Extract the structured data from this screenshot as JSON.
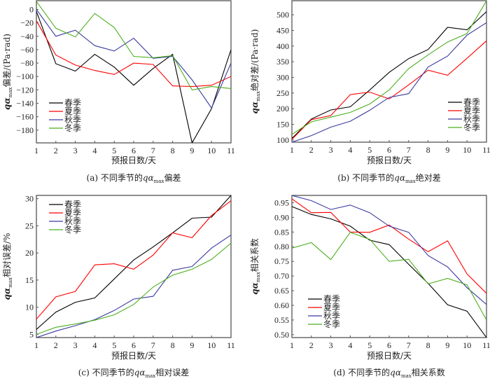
{
  "chart_data": [
    {
      "id": "a",
      "type": "line",
      "caption_prefix": "(a) 不同季节的",
      "caption_var": "qα",
      "caption_sub": "max",
      "caption_suffix": "偏差",
      "xlabel": "预报日数/天",
      "ylabel_var": "qα",
      "ylabel_sub": "max",
      "ylabel_suffix": "偏差/(Pa·rad)",
      "x": [
        1,
        2,
        3,
        4,
        5,
        6,
        7,
        8,
        9,
        10,
        11
      ],
      "xticks": [
        "1",
        "2",
        "3",
        "4",
        "5",
        "6",
        "7",
        "8",
        "9",
        "10",
        "11"
      ],
      "yticks": [
        0,
        -20,
        -40,
        -60,
        -80,
        -100,
        -120,
        -140,
        -160,
        -180
      ],
      "ytick_labels": [
        "0",
        "−20",
        "−40",
        "−60",
        "−80",
        "−100",
        "−120",
        "−140",
        "−160",
        "−180"
      ],
      "ylim": [
        -199,
        13
      ],
      "legend": "bottom-left",
      "series": [
        {
          "name": "春季",
          "color": "#000000",
          "values": [
            -3,
            -81,
            -92,
            -67,
            -86,
            -113,
            -88,
            -67,
            -199,
            -148,
            -60
          ]
        },
        {
          "name": "夏季",
          "color": "#ff0000",
          "values": [
            -17,
            -68,
            -83,
            -91,
            -97,
            -80,
            -82,
            -114,
            -115,
            -113,
            -100
          ]
        },
        {
          "name": "秋季",
          "color": "#3a3aa0",
          "values": [
            0,
            -40,
            -31,
            -54,
            -62,
            -43,
            -73,
            -70,
            -105,
            -147,
            -80
          ]
        },
        {
          "name": "冬季",
          "color": "#4caf1e",
          "values": [
            12,
            -28,
            -41,
            -6,
            -27,
            -70,
            -72,
            -69,
            -120,
            -115,
            -118
          ]
        }
      ]
    },
    {
      "id": "b",
      "type": "line",
      "caption_prefix": "(b) 不同季节的",
      "caption_var": "qα",
      "caption_sub": "max",
      "caption_suffix": "绝对差",
      "xlabel": "预报日数/天",
      "ylabel_var": "qα",
      "ylabel_sub": "max",
      "ylabel_suffix": "绝对差/(Pa·rad)",
      "x": [
        1,
        2,
        3,
        4,
        5,
        6,
        7,
        8,
        9,
        10,
        11
      ],
      "xticks": [
        "1",
        "2",
        "3",
        "4",
        "5",
        "6",
        "7",
        "8",
        "9",
        "10",
        "11"
      ],
      "yticks": [
        100,
        150,
        200,
        250,
        300,
        350,
        400,
        450,
        500
      ],
      "ytick_labels": [
        "100",
        "150",
        "200",
        "250",
        "300",
        "350",
        "400",
        "450",
        "500"
      ],
      "ylim": [
        93,
        545
      ],
      "legend": "bottom-right",
      "series": [
        {
          "name": "春季",
          "color": "#000000",
          "values": [
            105,
            167,
            196,
            206,
            260,
            316,
            360,
            389,
            460,
            452,
            510
          ]
        },
        {
          "name": "夏季",
          "color": "#ff0000",
          "values": [
            102,
            165,
            178,
            245,
            253,
            231,
            276,
            323,
            307,
            361,
            417
          ]
        },
        {
          "name": "秋季",
          "color": "#3a3aa0",
          "values": [
            93,
            114,
            141,
            160,
            195,
            236,
            248,
            333,
            368,
            435,
            475
          ]
        },
        {
          "name": "冬季",
          "color": "#4caf1e",
          "values": [
            118,
            158,
            173,
            188,
            215,
            260,
            328,
            372,
            413,
            440,
            545
          ]
        }
      ]
    },
    {
      "id": "c",
      "type": "line",
      "caption_prefix": "(c) 不同季节的",
      "caption_var": "qα",
      "caption_sub": "max",
      "caption_suffix": "相对误差",
      "xlabel": "预报日数/天",
      "ylabel_var": "qα",
      "ylabel_sub": "max",
      "ylabel_suffix": "相对误差/%",
      "x": [
        1,
        2,
        3,
        4,
        5,
        6,
        7,
        8,
        9,
        10,
        11
      ],
      "xticks": [
        "1",
        "2",
        "3",
        "4",
        "5",
        "6",
        "7",
        "8",
        "9",
        "10",
        "11"
      ],
      "yticks": [
        5,
        10,
        15,
        20,
        25,
        30
      ],
      "ytick_labels": [
        "5",
        "10",
        "15",
        "20",
        "25",
        "30"
      ],
      "ylim": [
        4.4,
        30.6
      ],
      "legend": "top-left",
      "series": [
        {
          "name": "春季",
          "color": "#000000",
          "values": [
            5.9,
            9.1,
            10.9,
            11.7,
            15.2,
            18.7,
            21.1,
            23.7,
            26.4,
            26.6,
            30.6
          ]
        },
        {
          "name": "夏季",
          "color": "#ff0000",
          "values": [
            7.8,
            11.9,
            12.9,
            17.8,
            18.0,
            17.0,
            19.6,
            23.7,
            22.8,
            26.9,
            29.6
          ]
        },
        {
          "name": "秋季",
          "color": "#3a3aa0",
          "values": [
            4.4,
            5.6,
            6.6,
            7.7,
            9.4,
            11.5,
            12.0,
            16.8,
            17.5,
            20.9,
            23.3
          ]
        },
        {
          "name": "冬季",
          "color": "#4caf1e",
          "values": [
            5.0,
            6.3,
            6.9,
            7.6,
            8.6,
            10.5,
            13.7,
            15.9,
            17.0,
            18.8,
            21.8
          ]
        }
      ]
    },
    {
      "id": "d",
      "type": "line",
      "caption_prefix": "(d) 不同季节的",
      "caption_var": "qα",
      "caption_sub": "max",
      "caption_suffix": "相关系数",
      "xlabel": "预报日数/天",
      "ylabel_var": "qα",
      "ylabel_sub": "max",
      "ylabel_suffix": "相关系数",
      "x": [
        1,
        2,
        3,
        4,
        5,
        6,
        7,
        8,
        9,
        10,
        11
      ],
      "xticks": [
        "1",
        "2",
        "3",
        "4",
        "5",
        "6",
        "7",
        "8",
        "9",
        "10",
        "11"
      ],
      "yticks": [
        0.5,
        0.55,
        0.6,
        0.65,
        0.7,
        0.75,
        0.8,
        0.85,
        0.9,
        0.95
      ],
      "ytick_labels": [
        "0.50",
        "0.55",
        "0.60",
        "0.65",
        "0.70",
        "0.75",
        "0.80",
        "0.85",
        "0.90",
        "0.95"
      ],
      "ylim": [
        0.49,
        0.975
      ],
      "legend": "bottom-left",
      "series": [
        {
          "name": "春季",
          "color": "#000000",
          "values": [
            0.937,
            0.91,
            0.895,
            0.87,
            0.822,
            0.807,
            0.74,
            0.675,
            0.602,
            0.58,
            0.49
          ]
        },
        {
          "name": "夏季",
          "color": "#ff0000",
          "values": [
            0.963,
            0.916,
            0.917,
            0.85,
            0.849,
            0.874,
            0.826,
            0.783,
            0.82,
            0.707,
            0.641
          ]
        },
        {
          "name": "秋季",
          "color": "#3a3aa0",
          "values": [
            0.975,
            0.957,
            0.927,
            0.942,
            0.916,
            0.87,
            0.849,
            0.77,
            0.731,
            0.66,
            0.603
          ]
        },
        {
          "name": "冬季",
          "color": "#4caf1e",
          "values": [
            0.795,
            0.814,
            0.756,
            0.849,
            0.825,
            0.75,
            0.757,
            0.673,
            0.692,
            0.67,
            0.55
          ]
        }
      ]
    }
  ]
}
